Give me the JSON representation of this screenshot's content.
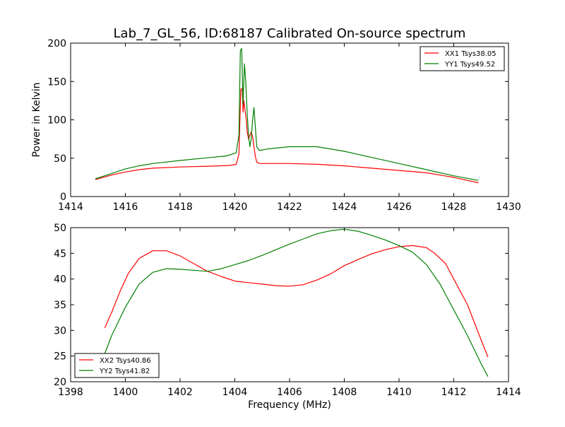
{
  "title": "Lab_7_GL_56, ID:68187 Calibrated On-source spectrum",
  "chart_data": [
    {
      "type": "line",
      "ylabel": "Power in Kelvin",
      "xlabel": "",
      "xlim": [
        1414,
        1430
      ],
      "ylim": [
        0,
        200
      ],
      "xticks": [
        "1414",
        "1416",
        "1418",
        "1420",
        "1422",
        "1424",
        "1426",
        "1428",
        "1430"
      ],
      "yticks": [
        "0",
        "50",
        "100",
        "150",
        "200"
      ],
      "legend_position": "top-right",
      "series": [
        {
          "name": "XX1 Tsys38.05",
          "color": "#ff0000",
          "x": [
            1414.9,
            1415.5,
            1416,
            1416.5,
            1417,
            1418,
            1419,
            1419.8,
            1420.05,
            1420.15,
            1420.22,
            1420.27,
            1420.3,
            1420.33,
            1420.38,
            1420.42,
            1420.45,
            1420.5,
            1420.55,
            1420.6,
            1420.65,
            1420.7,
            1420.75,
            1420.8,
            1420.9,
            1421.2,
            1422,
            1423,
            1424,
            1425,
            1426,
            1427,
            1428,
            1428.5,
            1428.9
          ],
          "y": [
            22,
            28,
            32,
            35,
            37,
            38.5,
            39.5,
            40.5,
            42,
            55,
            140,
            141,
            110,
            125,
            110,
            100,
            85,
            75,
            80,
            84,
            78,
            65,
            52,
            45,
            43,
            43,
            43,
            42,
            40,
            37,
            34,
            31,
            25,
            21,
            18
          ]
        },
        {
          "name": "YY1 Tsys49.52",
          "color": "#008000",
          "x": [
            1414.9,
            1415.5,
            1416,
            1416.5,
            1417,
            1418,
            1419,
            1419.7,
            1420.05,
            1420.15,
            1420.2,
            1420.25,
            1420.3,
            1420.35,
            1420.4,
            1420.45,
            1420.5,
            1420.55,
            1420.6,
            1420.65,
            1420.7,
            1420.75,
            1420.8,
            1420.9,
            1421.2,
            1422,
            1423,
            1424,
            1425,
            1426,
            1427,
            1428,
            1428.9
          ],
          "y": [
            23,
            30,
            36,
            40,
            43,
            47,
            50.5,
            53,
            57,
            80,
            190,
            193,
            120,
            173,
            150,
            110,
            80,
            65,
            75,
            100,
            116,
            90,
            65,
            60,
            62,
            65,
            65,
            59,
            51,
            43,
            35,
            27,
            21
          ]
        }
      ]
    },
    {
      "type": "line",
      "xlabel": "Frequency (MHz)",
      "ylabel": "",
      "xlim": [
        1398,
        1414
      ],
      "ylim": [
        20,
        50
      ],
      "xticks": [
        "1398",
        "1400",
        "1402",
        "1404",
        "1406",
        "1408",
        "1410",
        "1412",
        "1414"
      ],
      "yticks": [
        "20",
        "25",
        "30",
        "35",
        "40",
        "45",
        "50"
      ],
      "legend_position": "bottom-left",
      "series": [
        {
          "name": "XX2 Tsys40.86",
          "color": "#ff0000",
          "x": [
            1399.25,
            1399.5,
            1399.8,
            1400.1,
            1400.5,
            1401,
            1401.5,
            1402,
            1402.5,
            1403,
            1403.5,
            1404,
            1404.5,
            1405,
            1405.5,
            1406,
            1406.5,
            1407,
            1407.5,
            1408,
            1408.5,
            1409,
            1409.5,
            1410,
            1410.5,
            1411,
            1411.3,
            1411.7,
            1412,
            1412.5,
            1412.9,
            1413.25
          ],
          "y": [
            30.5,
            33.5,
            37.5,
            41,
            44,
            45.5,
            45.5,
            44.5,
            43,
            41.5,
            40.5,
            39.6,
            39.3,
            39,
            38.7,
            38.6,
            38.9,
            39.8,
            41,
            42.6,
            43.8,
            44.9,
            45.7,
            46.3,
            46.5,
            46.1,
            45,
            43,
            40,
            35,
            29.5,
            24.8
          ]
        },
        {
          "name": "YY2 Tsys41.82",
          "color": "#008000",
          "x": [
            1399.25,
            1399.5,
            1400,
            1400.5,
            1401,
            1401.5,
            1402,
            1402.5,
            1403,
            1403.5,
            1404,
            1404.5,
            1405,
            1405.5,
            1406,
            1406.5,
            1407,
            1407.5,
            1408,
            1408.5,
            1409,
            1409.5,
            1410,
            1410.5,
            1411,
            1411.5,
            1412,
            1412.5,
            1413,
            1413.25
          ],
          "y": [
            25.5,
            29,
            34.5,
            39,
            41.3,
            42,
            41.9,
            41.7,
            41.5,
            42,
            42.8,
            43.6,
            44.6,
            45.7,
            46.8,
            47.8,
            48.8,
            49.4,
            49.7,
            49.3,
            48.5,
            47.6,
            46.5,
            45.2,
            42.8,
            39,
            34,
            29,
            23.5,
            21
          ]
        }
      ]
    }
  ]
}
